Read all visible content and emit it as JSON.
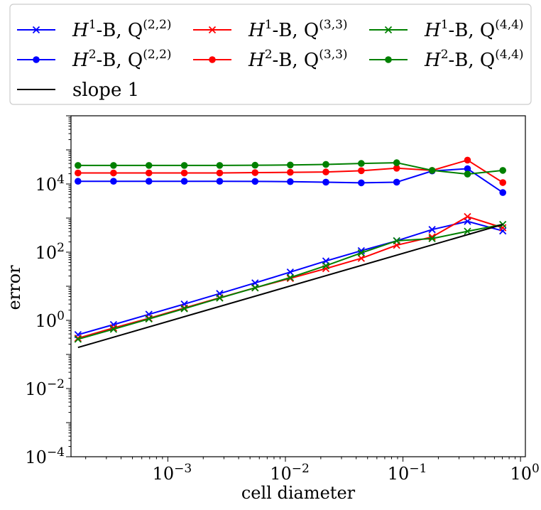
{
  "chart_data": {
    "type": "line",
    "x_scale": "log",
    "y_scale": "log",
    "xlabel": "cell diameter",
    "ylabel": "error",
    "xlim": [
      0.00015,
      1.1
    ],
    "ylim": [
      0.0001,
      1000000
    ],
    "x": [
      0.000172,
      0.000345,
      0.00069,
      0.00138,
      0.00276,
      0.00552,
      0.011,
      0.0221,
      0.0442,
      0.0884,
      0.177,
      0.354,
      0.707
    ],
    "x_ticks": [
      {
        "value": 0.001,
        "base": "10",
        "exp": "−3"
      },
      {
        "value": 0.01,
        "base": "10",
        "exp": "−2"
      },
      {
        "value": 0.1,
        "base": "10",
        "exp": "−1"
      },
      {
        "value": 1,
        "base": "10",
        "exp": "0"
      }
    ],
    "y_ticks": [
      {
        "value": 0.0001,
        "base": "10",
        "exp": "−4"
      },
      {
        "value": 0.01,
        "base": "10",
        "exp": "−2"
      },
      {
        "value": 1,
        "base": "10",
        "exp": "0"
      },
      {
        "value": 100,
        "base": "10",
        "exp": "2"
      },
      {
        "value": 10000,
        "base": "10",
        "exp": "4"
      }
    ],
    "series": [
      {
        "name": "H1-B, Q(2,2)",
        "color": "#0000ff",
        "marker": "x",
        "values": [
          0.38,
          0.75,
          1.5,
          3.0,
          6.1,
          12.5,
          26,
          55,
          110,
          215,
          460,
          800,
          420
        ]
      },
      {
        "name": "H2-B, Q(2,2)",
        "color": "#0000ff",
        "marker": "o",
        "values": [
          12000,
          12000,
          12000,
          12000,
          12000,
          11900,
          11700,
          11300,
          10800,
          11300,
          24000,
          28000,
          5600
        ]
      },
      {
        "name": "H1-B, Q(3,3)",
        "color": "#ff0000",
        "marker": "x",
        "values": [
          0.3,
          0.6,
          1.15,
          2.3,
          4.6,
          9.0,
          17,
          33,
          66,
          160,
          280,
          1100,
          520
        ]
      },
      {
        "name": "H2-B, Q(3,3)",
        "color": "#ff0000",
        "marker": "o",
        "values": [
          21000,
          21000,
          21000,
          21000,
          21000,
          21500,
          22000,
          22500,
          24500,
          29000,
          25000,
          50000,
          11000
        ]
      },
      {
        "name": "H1-B, Q(4,4)",
        "color": "#008000",
        "marker": "x",
        "values": [
          0.28,
          0.55,
          1.1,
          2.2,
          4.5,
          9.0,
          18,
          40,
          95,
          215,
          250,
          410,
          650
        ]
      },
      {
        "name": "H2-B, Q(4,4)",
        "color": "#008000",
        "marker": "o",
        "values": [
          35000,
          35000,
          35000,
          35000,
          35000,
          35500,
          36000,
          37500,
          40000,
          42000,
          25000,
          19500,
          25000
        ]
      },
      {
        "name": "slope 1",
        "color": "#000000",
        "marker": "none",
        "x": [
          0.000172,
          0.707
        ],
        "values": [
          0.16,
          650
        ]
      }
    ],
    "legend": {
      "placement": "top",
      "entries": [
        {
          "prefix": "H",
          "sup1": "1",
          "mid": "-B, Q",
          "sup2": "(2,2)",
          "color": "#0000ff",
          "marker": "x"
        },
        {
          "prefix": "H",
          "sup1": "1",
          "mid": "-B, Q",
          "sup2": "(3,3)",
          "color": "#ff0000",
          "marker": "x"
        },
        {
          "prefix": "H",
          "sup1": "1",
          "mid": "-B, Q",
          "sup2": "(4,4)",
          "color": "#008000",
          "marker": "x"
        },
        {
          "prefix": "H",
          "sup1": "2",
          "mid": "-B, Q",
          "sup2": "(2,2)",
          "color": "#0000ff",
          "marker": "o"
        },
        {
          "prefix": "H",
          "sup1": "2",
          "mid": "-B, Q",
          "sup2": "(3,3)",
          "color": "#ff0000",
          "marker": "o"
        },
        {
          "prefix": "H",
          "sup1": "2",
          "mid": "-B, Q",
          "sup2": "(4,4)",
          "color": "#008000",
          "marker": "o"
        },
        {
          "plain": "slope 1",
          "color": "#000000",
          "marker": "none"
        }
      ]
    }
  }
}
